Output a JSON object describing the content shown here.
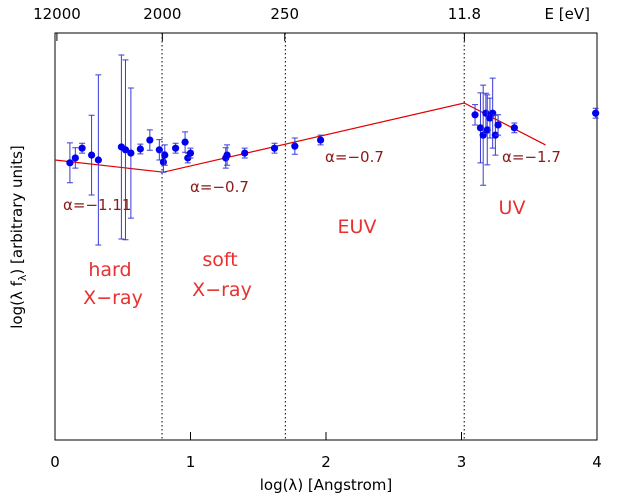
{
  "chart_data": {
    "type": "errorbar-scatter",
    "xlabel": "log(λ) [Angstrom]",
    "ylabel": [
      "log(λ f",
      "λ",
      ") [arbitrary units]"
    ],
    "x2label": "E [eV]",
    "xlim": [
      0,
      4
    ],
    "xticks": [
      0,
      1,
      2,
      3,
      4
    ],
    "ylim": [
      0,
      100
    ],
    "x2ticks": [
      12000,
      2000,
      250,
      11.8
    ],
    "dividers": [
      0.79,
      1.7,
      3.02
    ],
    "series": [
      {
        "color": "#0000ee",
        "x": [
          0.11,
          0.15,
          0.2,
          0.27,
          0.32,
          0.49,
          0.52,
          0.56,
          0.63,
          0.7,
          0.77,
          0.8,
          0.81,
          0.89,
          0.96,
          0.98,
          1.0,
          1.26,
          1.27,
          1.4,
          1.62,
          1.77,
          1.96,
          3.1,
          3.14,
          3.16,
          3.18,
          3.19,
          3.21,
          3.23,
          3.25,
          3.27,
          3.39,
          3.99
        ],
        "values": [
          68.1,
          69.3,
          71.7,
          70.0,
          68.8,
          72.0,
          71.3,
          70.5,
          71.5,
          73.7,
          71.3,
          68.3,
          70.0,
          71.7,
          73.2,
          69.3,
          70.5,
          69.3,
          70.0,
          70.5,
          71.7,
          72.2,
          73.7,
          79.9,
          76.7,
          74.9,
          80.3,
          76.2,
          79.1,
          80.3,
          74.9,
          77.4,
          76.7,
          80.3
        ],
        "errors": [
          4.9,
          2.5,
          1.2,
          9.8,
          20.9,
          22.6,
          22.1,
          16.0,
          1.2,
          2.5,
          2.5,
          2.5,
          2.5,
          1.2,
          2.5,
          1.2,
          1.2,
          2.5,
          2.5,
          1.2,
          1.2,
          2.0,
          1.2,
          2.5,
          8.6,
          12.3,
          4.9,
          8.6,
          4.9,
          8.6,
          4.9,
          2.5,
          1.2,
          1.2
        ]
      }
    ],
    "model": {
      "color": "#e00000",
      "x": [
        0,
        0.8,
        3.02,
        3.62
      ],
      "values": [
        68.8,
        65.8,
        82.8,
        72.5
      ]
    },
    "annotations": [
      {
        "text": "α=−1.11",
        "color": "#8b1a1a"
      },
      {
        "text": "α=−0.7",
        "color": "#8b1a1a"
      },
      {
        "text": "α=−0.7",
        "color": "#8b1a1a"
      },
      {
        "text": "α=−1.7",
        "color": "#8b1a1a"
      },
      {
        "text": "hard",
        "color": "#e83030"
      },
      {
        "text": "X−ray",
        "color": "#e83030"
      },
      {
        "text": "soft",
        "color": "#e83030"
      },
      {
        "text": "X−ray",
        "color": "#e83030"
      },
      {
        "text": "EUV",
        "color": "#e83030"
      },
      {
        "text": "UV",
        "color": "#e83030"
      }
    ]
  }
}
